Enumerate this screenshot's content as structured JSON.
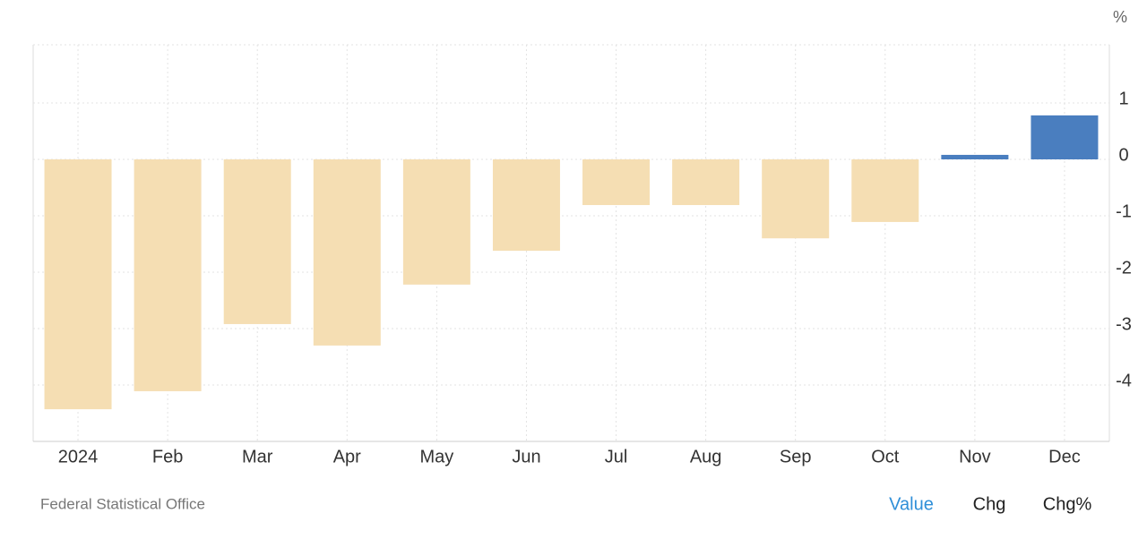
{
  "chart_data": {
    "type": "bar",
    "unit": "%",
    "categories": [
      "2024",
      "Feb",
      "Mar",
      "Apr",
      "May",
      "Jun",
      "Jul",
      "Aug",
      "Sep",
      "Oct",
      "Nov",
      "Dec"
    ],
    "values": [
      -4.43,
      -4.11,
      -2.92,
      -3.3,
      -2.22,
      -1.62,
      -0.81,
      -0.81,
      -1.4,
      -1.11,
      0.08,
      0.78
    ],
    "color_negative": "#f5deb3",
    "color_positive": "#4a7ebf",
    "ylim": [
      -5,
      2
    ],
    "yticks": [
      -4,
      -3,
      -2,
      -1,
      0,
      1
    ],
    "grid": true,
    "source": "Federal Statistical Office",
    "buttons": [
      "Value",
      "Chg",
      "Chg%"
    ]
  }
}
